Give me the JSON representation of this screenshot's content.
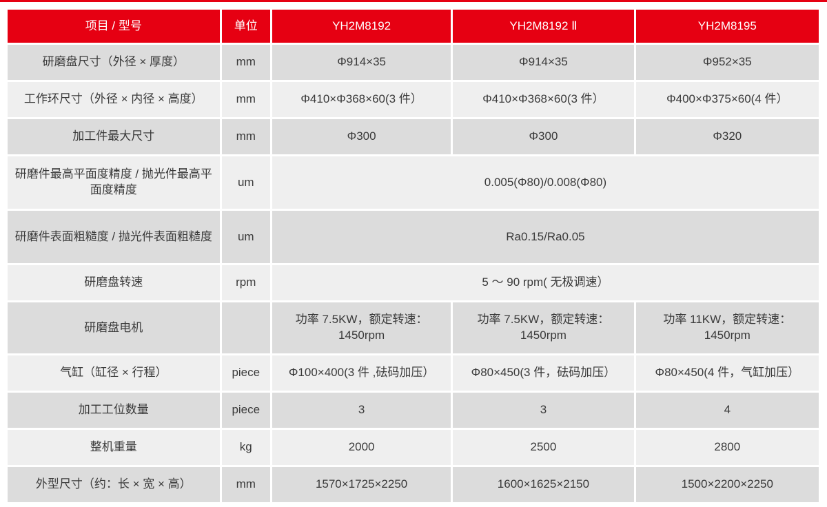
{
  "colors": {
    "header_red": "#e60012",
    "row_light": "#efefef",
    "row_dark": "#dcdcdc",
    "header_text": "#ffffff",
    "body_text": "#3a3a3a"
  },
  "table": {
    "headers": [
      "项目 / 型号",
      "单位",
      "YH2M8192",
      "YH2M8192 Ⅱ",
      "YH2M8195"
    ],
    "rows": [
      {
        "item": "研磨盘尺寸（外径 × 厚度）",
        "unit": "mm",
        "values": [
          "Φ914×35",
          "Φ914×35",
          "Φ952×35"
        ]
      },
      {
        "item": "工作环尺寸（外径 × 内径 × 高度）",
        "unit": "mm",
        "values": [
          "Φ410×Φ368×60(3 件）",
          "Φ410×Φ368×60(3 件）",
          "Φ400×Φ375×60(4 件）"
        ]
      },
      {
        "item": "加工件最大尺寸",
        "unit": "mm",
        "values": [
          "Φ300",
          "Φ300",
          "Φ320"
        ]
      },
      {
        "item": "研磨件最高平面度精度 / 抛光件最高平面度精度",
        "unit": "um",
        "merged_value": "0.005(Φ80)/0.008(Φ80)"
      },
      {
        "item": "研磨件表面粗糙度 / 抛光件表面粗糙度",
        "unit": "um",
        "merged_value": "Ra0.15/Ra0.05"
      },
      {
        "item": "研磨盘转速",
        "unit": "rpm",
        "merged_value": "5 ～ 90 rpm( 无极调速）"
      },
      {
        "item": "研磨盘电机",
        "unit": "",
        "values": [
          "功率 7.5KW，额定转速：1450rpm",
          "功率 7.5KW，额定转速：1450rpm",
          "功率 11KW，额定转速：1450rpm"
        ]
      },
      {
        "item": "气缸（缸径 × 行程）",
        "unit": "piece",
        "values": [
          "Φ100×400(3 件 ,砝码加压）",
          "Φ80×450(3 件，砝码加压）",
          "Φ80×450(4 件，气缸加压）"
        ]
      },
      {
        "item": "加工工位数量",
        "unit": "piece",
        "values": [
          "3",
          "3",
          "4"
        ]
      },
      {
        "item": "整机重量",
        "unit": "kg",
        "values": [
          "2000",
          "2500",
          "2800"
        ]
      },
      {
        "item": "外型尺寸（约：长 × 宽 × 高）",
        "unit": "mm",
        "values": [
          "1570×1725×2250",
          "1600×1625×2150",
          "1500×2200×2250"
        ]
      }
    ]
  }
}
